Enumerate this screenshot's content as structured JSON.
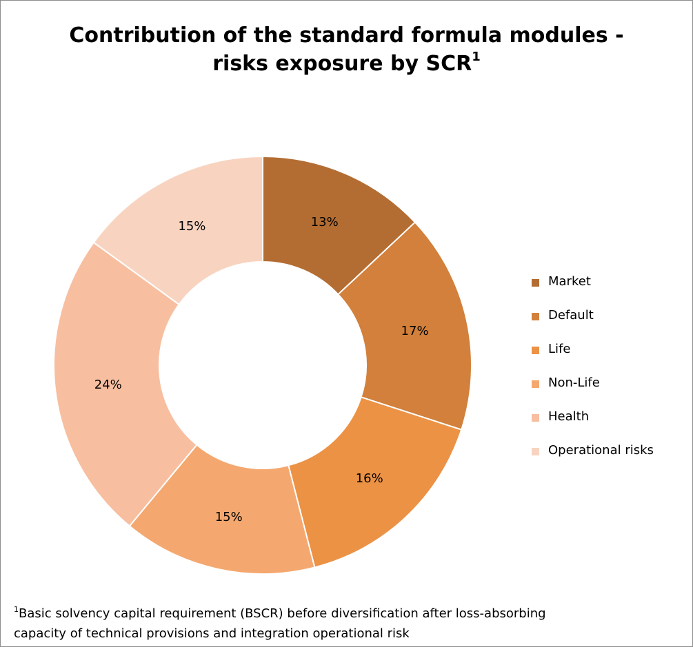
{
  "chart_data": {
    "type": "pie",
    "style": "donut",
    "title": "Contribution of the standard formula modules - risks exposure by SCR",
    "title_line1": "Contribution of the standard formula modules -",
    "title_line2": "risks exposure by SCR",
    "title_superscript": "1",
    "categories": [
      "Market",
      "Default",
      "Life",
      "Non-Life",
      "Health",
      "Operational risks"
    ],
    "values": [
      13,
      17,
      16,
      15,
      24,
      15
    ],
    "value_labels": [
      "13%",
      "17%",
      "16%",
      "15%",
      "24%",
      "15%"
    ],
    "colors": [
      "#b36d32",
      "#d2803b",
      "#ec9245",
      "#f4a86f",
      "#f7bfa0",
      "#f8d4c0"
    ],
    "legend": {
      "position": "right",
      "entries": [
        "Market",
        "Default",
        "Life",
        "Non-Life",
        "Health",
        "Operational risks"
      ]
    }
  },
  "footnote": {
    "marker": "1",
    "line1": "Basic solvency capital requirement (BSCR) before diversification after loss-absorbing",
    "line2": "capacity of technical provisions and integration operational risk"
  }
}
